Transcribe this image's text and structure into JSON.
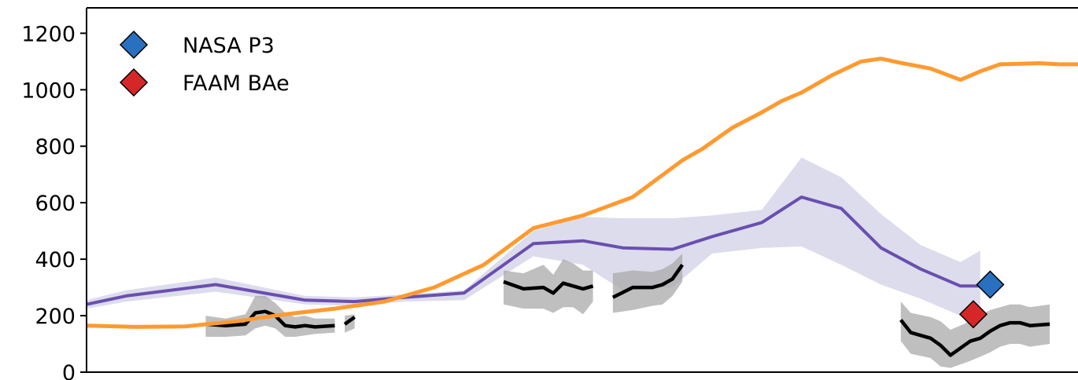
{
  "chart_data": {
    "type": "line",
    "ylim": [
      0,
      1290
    ],
    "xlim": [
      0,
      100
    ],
    "y_ticks": [
      0,
      200,
      400,
      600,
      800,
      1000,
      1200
    ],
    "y_tick_labels": [
      "0",
      "200",
      "400",
      "600",
      "800",
      "1000",
      "1200"
    ],
    "legend": {
      "placement": "top-left",
      "entries": [
        {
          "label": "NASA P3",
          "marker": "diamond",
          "color": "#2a70c0"
        },
        {
          "label": "FAAM BAe",
          "marker": "diamond",
          "color": "#d62728"
        }
      ]
    },
    "orange_line": {
      "color": "#ff9a30",
      "x": [
        0,
        5,
        10,
        15,
        20,
        25,
        30,
        35,
        40,
        45,
        50,
        55,
        60,
        62,
        65,
        68,
        70,
        72,
        75,
        78,
        80,
        82,
        85,
        88,
        90,
        92,
        94,
        96,
        97,
        98,
        99,
        100
      ],
      "y": [
        165,
        160,
        162,
        180,
        205,
        225,
        250,
        300,
        380,
        510,
        555,
        620,
        750,
        790,
        865,
        920,
        960,
        990,
        1050,
        1100,
        1110,
        1095,
        1075,
        1035,
        1065,
        1090,
        1092,
        1094,
        1092,
        1090,
        1090,
        1090
      ]
    },
    "purple_line": {
      "color": "#6a4fae",
      "band_color": "#d6d6ea",
      "x": [
        0,
        4,
        13,
        22,
        27,
        32,
        38,
        45,
        50,
        54,
        59,
        63,
        68,
        72,
        76,
        80,
        84,
        88,
        90
      ],
      "y": [
        240,
        270,
        310,
        255,
        250,
        265,
        280,
        455,
        465,
        440,
        435,
        480,
        530,
        620,
        580,
        440,
        365,
        305,
        305
      ],
      "upper": [
        255,
        290,
        335,
        270,
        265,
        275,
        290,
        500,
        550,
        545,
        545,
        555,
        575,
        760,
        690,
        560,
        450,
        390,
        430
      ],
      "lower": [
        225,
        250,
        285,
        240,
        235,
        250,
        255,
        410,
        380,
        290,
        300,
        420,
        440,
        445,
        380,
        310,
        260,
        200,
        205
      ]
    },
    "black_segments": [
      {
        "x": [
          12,
          14,
          16,
          17,
          18,
          19,
          20,
          21,
          22,
          23,
          25
        ],
        "y": [
          170,
          165,
          170,
          210,
          215,
          200,
          165,
          160,
          165,
          160,
          165
        ],
        "upper": [
          200,
          190,
          205,
          270,
          270,
          245,
          210,
          195,
          200,
          190,
          190
        ],
        "lower": [
          125,
          125,
          130,
          155,
          165,
          155,
          125,
          125,
          130,
          135,
          140
        ]
      },
      {
        "x": [
          26,
          27
        ],
        "y": [
          170,
          195
        ],
        "upper": [
          200,
          205
        ],
        "lower": [
          140,
          155
        ]
      },
      {
        "x": [
          42,
          44,
          46,
          47,
          48,
          49,
          50,
          51
        ],
        "y": [
          320,
          295,
          300,
          280,
          315,
          305,
          295,
          305
        ],
        "upper": [
          360,
          350,
          380,
          345,
          400,
          385,
          360,
          360
        ],
        "lower": [
          240,
          225,
          225,
          210,
          230,
          230,
          205,
          250
        ]
      },
      {
        "x": [
          53,
          55,
          57,
          58,
          59,
          60
        ],
        "y": [
          265,
          300,
          300,
          310,
          330,
          380
        ],
        "upper": [
          350,
          360,
          355,
          365,
          385,
          420
        ],
        "lower": [
          210,
          220,
          235,
          240,
          270,
          320
        ]
      },
      {
        "x": [
          82,
          83,
          85,
          86,
          87,
          89,
          90,
          91,
          92,
          93,
          94,
          95,
          97
        ],
        "y": [
          185,
          140,
          120,
          95,
          60,
          110,
          120,
          145,
          165,
          175,
          175,
          165,
          170
        ],
        "upper": [
          250,
          210,
          195,
          180,
          150,
          180,
          200,
          220,
          230,
          240,
          240,
          230,
          240
        ],
        "lower": [
          110,
          65,
          50,
          20,
          15,
          40,
          55,
          70,
          90,
          100,
          100,
          90,
          100
        ]
      }
    ],
    "markers": [
      {
        "series": "NASA P3",
        "x": 91,
        "y": 310,
        "color": "#2a70c0"
      },
      {
        "series": "FAAM BAe",
        "x": 89.3,
        "y": 205,
        "color": "#d62728"
      }
    ]
  }
}
